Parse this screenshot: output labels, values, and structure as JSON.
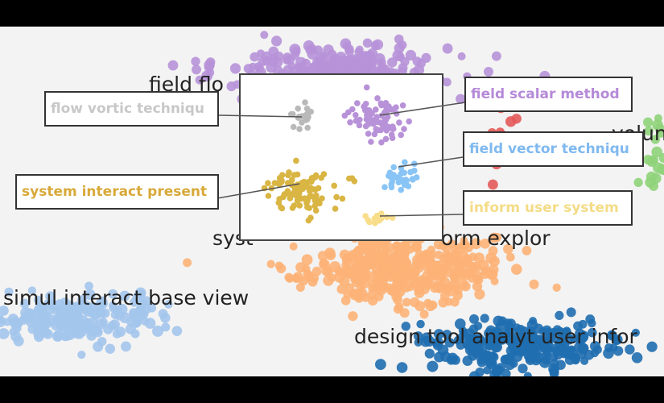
{
  "chart_data": {
    "type": "scatter",
    "title": "",
    "grid": false,
    "clusters": [
      {
        "id": "purple",
        "color": "#b792d8",
        "label": "field flo..."
      },
      {
        "id": "orange",
        "color": "#fdb277",
        "label": "system ... orm explor"
      },
      {
        "id": "lightblue",
        "color": "#a3c5ec",
        "label": "simul interact base view"
      },
      {
        "id": "darkblue",
        "color": "#1f6eb0",
        "label": "design tool analyt user infor"
      },
      {
        "id": "red",
        "color": "#e45a5a",
        "label": ""
      },
      {
        "id": "green",
        "color": "#8fd37a",
        "label": "volun..."
      }
    ],
    "inset": {
      "subclusters": [
        {
          "name": "flow vortic techniqu",
          "color": "#b9b9b9"
        },
        {
          "name": "field scalar method",
          "color": "#b892d8"
        },
        {
          "name": "field vector techniqu",
          "color": "#88c4f5"
        },
        {
          "name": "system interact present",
          "color": "#d9b543"
        },
        {
          "name": "inform user system",
          "color": "#f8de8a"
        }
      ]
    }
  },
  "labels": {
    "field_flo": "field flo",
    "system_orm_explor": "syst",
    "system_orm_explor_right": "orm explor",
    "simul": "simul interact base view",
    "design": "design tool analyt user infor",
    "volun": "volun"
  }
}
